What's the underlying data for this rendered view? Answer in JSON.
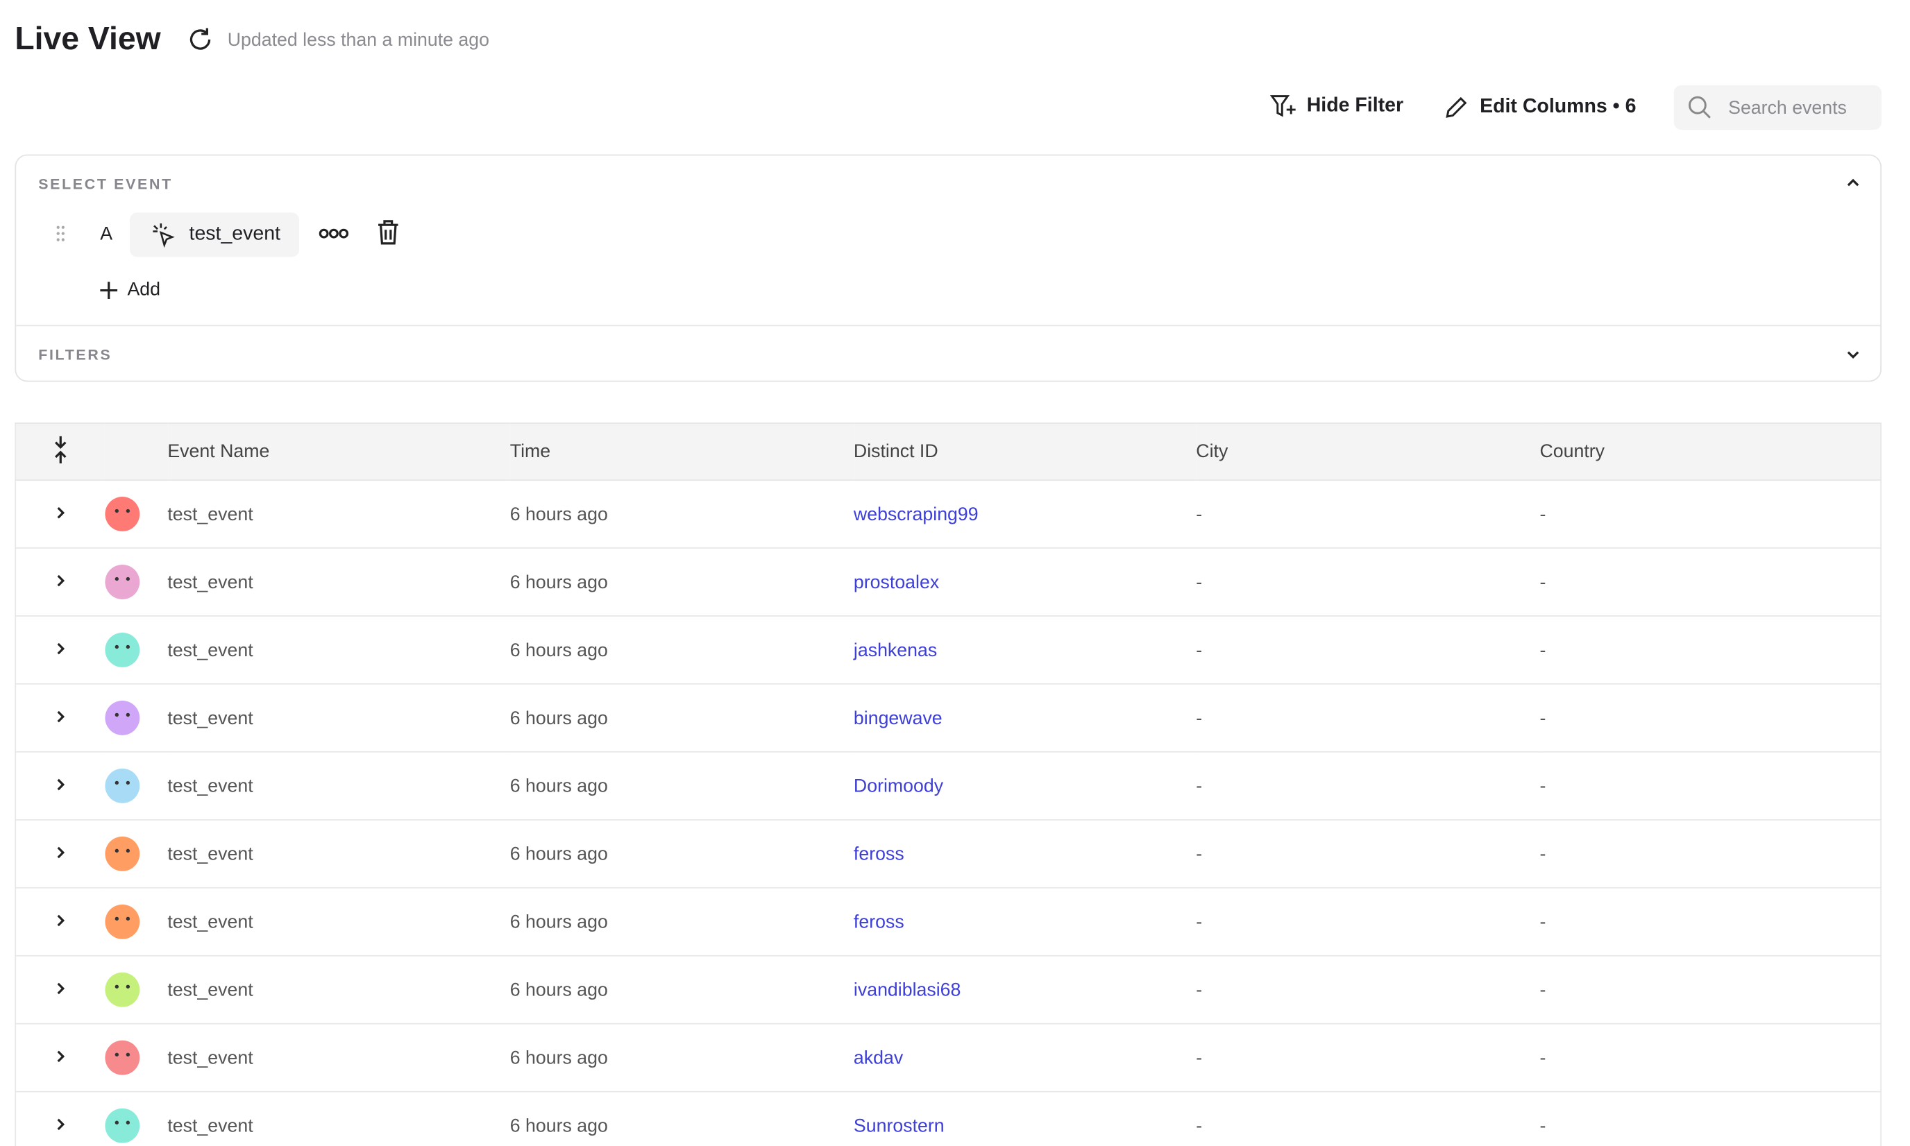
{
  "header": {
    "title": "Live View",
    "updated": "Updated less than a minute ago"
  },
  "toolbar": {
    "hide_filter": "Hide Filter",
    "edit_columns": "Edit Columns • 6",
    "search_placeholder": "Search events"
  },
  "select_event": {
    "label": "SELECT EVENT",
    "letter": "A",
    "event": "test_event",
    "add": "Add"
  },
  "filters": {
    "label": "FILTERS"
  },
  "table": {
    "columns": [
      "Event Name",
      "Time",
      "Distinct ID",
      "City",
      "Country"
    ],
    "rows": [
      {
        "event": "test_event",
        "time": "6 hours ago",
        "distinct_id": "webscraping99",
        "city": "-",
        "country": "-",
        "avatar_color": "#ff7a75"
      },
      {
        "event": "test_event",
        "time": "6 hours ago",
        "distinct_id": "prostoalex",
        "city": "-",
        "country": "-",
        "avatar_color": "#eaa7d2"
      },
      {
        "event": "test_event",
        "time": "6 hours ago",
        "distinct_id": "jashkenas",
        "city": "-",
        "country": "-",
        "avatar_color": "#88ebd9"
      },
      {
        "event": "test_event",
        "time": "6 hours ago",
        "distinct_id": "bingewave",
        "city": "-",
        "country": "-",
        "avatar_color": "#cfa6f8"
      },
      {
        "event": "test_event",
        "time": "6 hours ago",
        "distinct_id": "Dorimoody",
        "city": "-",
        "country": "-",
        "avatar_color": "#a8dcf6"
      },
      {
        "event": "test_event",
        "time": "6 hours ago",
        "distinct_id": "feross",
        "city": "-",
        "country": "-",
        "avatar_color": "#ff9d62"
      },
      {
        "event": "test_event",
        "time": "6 hours ago",
        "distinct_id": "feross",
        "city": "-",
        "country": "-",
        "avatar_color": "#ff9d62"
      },
      {
        "event": "test_event",
        "time": "6 hours ago",
        "distinct_id": "ivandiblasi68",
        "city": "-",
        "country": "-",
        "avatar_color": "#c5f07b"
      },
      {
        "event": "test_event",
        "time": "6 hours ago",
        "distinct_id": "akdav",
        "city": "-",
        "country": "-",
        "avatar_color": "#f68a8c"
      },
      {
        "event": "test_event",
        "time": "6 hours ago",
        "distinct_id": "Sunrostern",
        "city": "-",
        "country": "-",
        "avatar_color": "#88ebd9"
      }
    ]
  },
  "colors": {
    "link": "#3d3fd6",
    "header_bg": "#f4f4f5"
  }
}
